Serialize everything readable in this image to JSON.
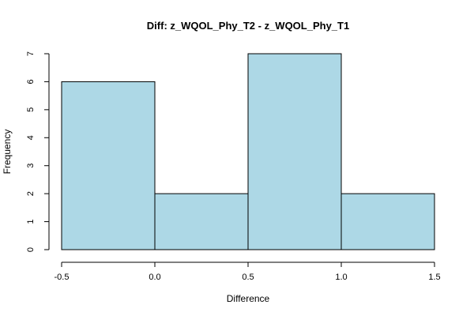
{
  "chart_data": {
    "type": "bar",
    "subtype": "histogram",
    "title": "Diff: z_WQOL_Phy_T2 - z_WQOL_Phy_T1",
    "xlabel": "Difference",
    "ylabel": "Frequency",
    "bins": [
      {
        "start": -0.5,
        "end": 0.0,
        "count": 6
      },
      {
        "start": 0.0,
        "end": 0.5,
        "count": 2
      },
      {
        "start": 0.5,
        "end": 1.0,
        "count": 7
      },
      {
        "start": 1.0,
        "end": 1.5,
        "count": 2
      }
    ],
    "xlim": [
      -0.5,
      1.5
    ],
    "ylim": [
      0,
      7
    ],
    "x_ticks": [
      -0.5,
      0.0,
      0.5,
      1.0,
      1.5
    ],
    "x_tick_labels": [
      "-0.5",
      "0.0",
      "0.5",
      "1.0",
      "1.5"
    ],
    "y_ticks": [
      0,
      1,
      2,
      3,
      4,
      5,
      6,
      7
    ],
    "y_tick_labels": [
      "0",
      "1",
      "2",
      "3",
      "4",
      "5",
      "6",
      "7"
    ],
    "bar_color": "#add8e6",
    "edge_color": "#000000",
    "grid": false,
    "legend": "none"
  }
}
